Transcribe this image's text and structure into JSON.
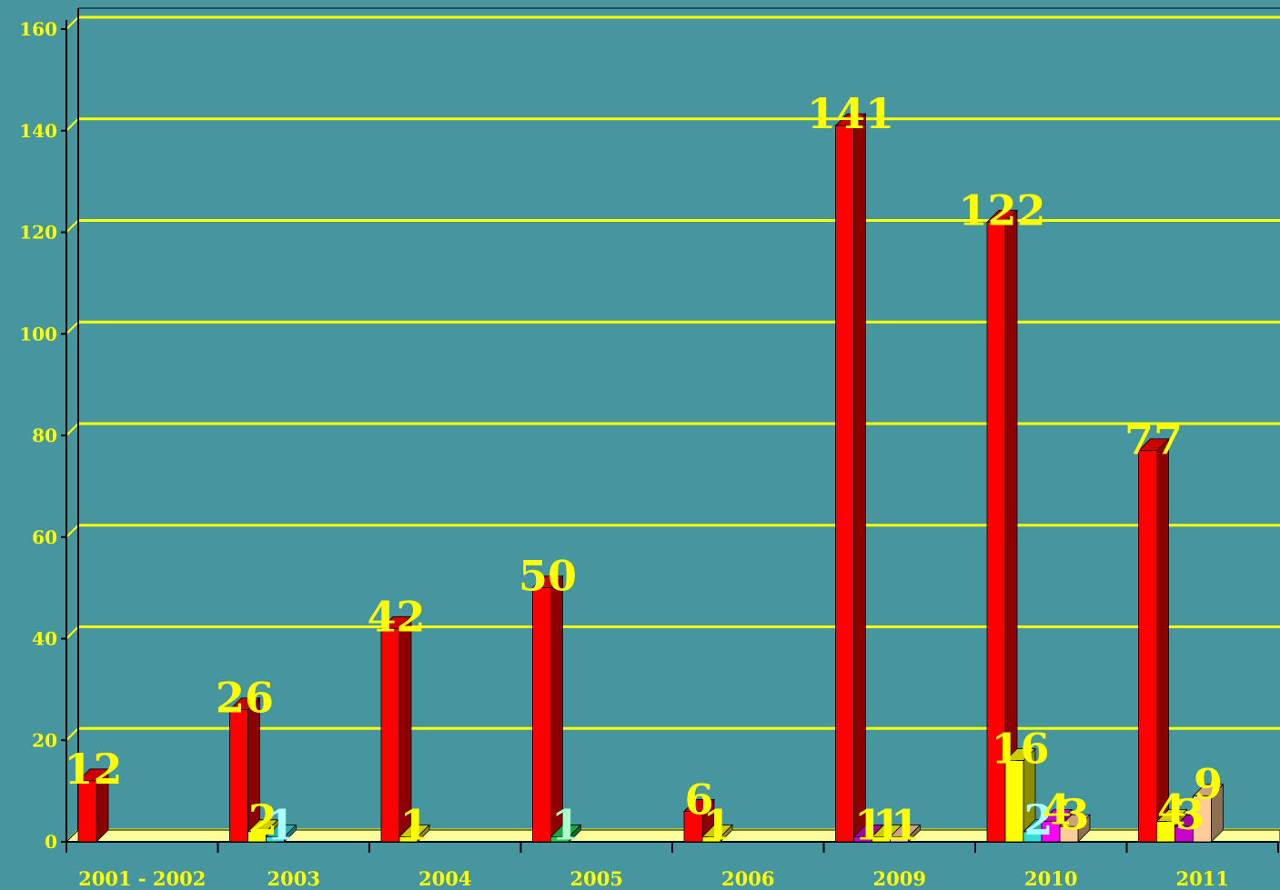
{
  "chart_data": {
    "type": "bar",
    "categories": [
      "2001 - 2002",
      "2003",
      "2004",
      "2005",
      "2006",
      "2009",
      "2010",
      "2011"
    ],
    "ylim": [
      0,
      160
    ],
    "yticks": [
      "0",
      "20",
      "40",
      "60",
      "80",
      "100",
      "120",
      "140",
      "160"
    ],
    "grid": true,
    "colors": {
      "background": "#45969e",
      "grid": "#ffff00",
      "text": "#ffff00"
    },
    "groups": [
      {
        "category": "2001 - 2002",
        "bars": [
          {
            "value": 12,
            "color": "#ff0000",
            "label": "12",
            "label_color": "#ffff00"
          }
        ]
      },
      {
        "category": "2003",
        "bars": [
          {
            "value": 26,
            "color": "#ff0000",
            "label": "26",
            "label_color": "#ffff00"
          },
          {
            "value": 2,
            "color": "#ffff00",
            "label": "2",
            "label_color": "#ffff00"
          },
          {
            "value": 1,
            "color": "#33dddd",
            "label": "1",
            "label_color": "#aaffff"
          }
        ]
      },
      {
        "category": "2004",
        "bars": [
          {
            "value": 42,
            "color": "#ff0000",
            "label": "42",
            "label_color": "#ffff00"
          },
          {
            "value": 1,
            "color": "#ffff00",
            "label": "1",
            "label_color": "#ffff00"
          }
        ]
      },
      {
        "category": "2005",
        "bars": [
          {
            "value": 50,
            "color": "#ff0000",
            "label": "50",
            "label_color": "#ffff00"
          },
          {
            "value": 1,
            "color": "#22cc55",
            "label": "1",
            "label_color": "#aaffcc"
          }
        ]
      },
      {
        "category": "2006",
        "bars": [
          {
            "value": 6,
            "color": "#ff0000",
            "label": "6",
            "label_color": "#ffff00"
          },
          {
            "value": 1,
            "color": "#ffff00",
            "label": "1",
            "label_color": "#ffff00"
          }
        ]
      },
      {
        "category": "2009",
        "bars": [
          {
            "value": 141,
            "color": "#ff0000",
            "label": "141",
            "label_color": "#ffff00"
          },
          {
            "value": 1,
            "color": "#cc00cc",
            "label": "1",
            "label_color": "#ffff00"
          },
          {
            "value": 1,
            "color": "#ffff00",
            "label": "1",
            "label_color": "#ffff00"
          },
          {
            "value": 1,
            "color": "#ffcc99",
            "label": "1",
            "label_color": "#ffff00"
          }
        ]
      },
      {
        "category": "2010",
        "bars": [
          {
            "value": 122,
            "color": "#ff0000",
            "label": "122",
            "label_color": "#ffff00"
          },
          {
            "value": 16,
            "color": "#ffff00",
            "label": "16",
            "label_color": "#ffff00"
          },
          {
            "value": 2,
            "color": "#33dddd",
            "label": "2",
            "label_color": "#aaffff"
          },
          {
            "value": 4,
            "color": "#ff00ff",
            "label": "4",
            "label_color": "#ffff00"
          },
          {
            "value": 3,
            "color": "#ffcc99",
            "label": "3",
            "label_color": "#ffff00"
          }
        ]
      },
      {
        "category": "2011",
        "bars": [
          {
            "value": 77,
            "color": "#ff0000",
            "label": "77",
            "label_color": "#ffff00"
          },
          {
            "value": 4,
            "color": "#ffff00",
            "label": "4",
            "label_color": "#ffff00"
          },
          {
            "value": 3,
            "color": "#cc00cc",
            "label": "3",
            "label_color": "#ffff00"
          },
          {
            "value": 9,
            "color": "#ffcc99",
            "label": "9",
            "label_color": "#ffff00"
          }
        ]
      }
    ]
  }
}
